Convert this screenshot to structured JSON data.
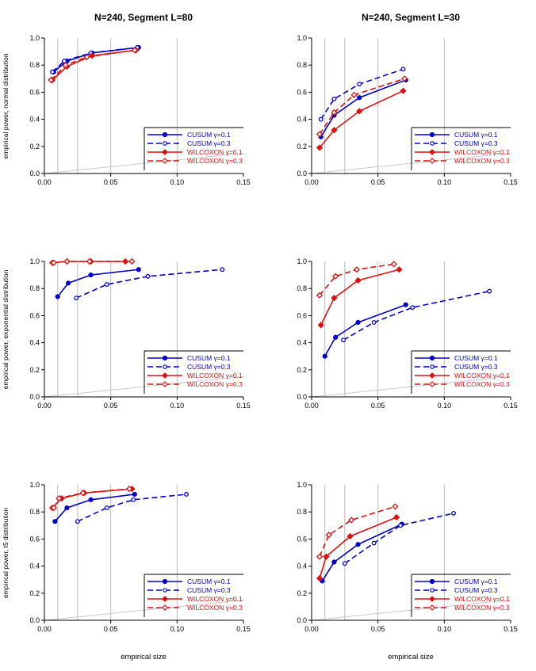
{
  "titles": {
    "col1": "N=240, Segment L=80",
    "col2": "N=240, Segment L=30"
  },
  "ylabels": {
    "row1": "empirical power, normal distribution",
    "row2": "empirical power, exponential distribution",
    "row3": "empirical power, t5 distribution"
  },
  "xlabel": "empirical size",
  "colors": {
    "cusum": "#0000cc",
    "wilcoxon": "#dd1111",
    "grid": "#bbbbbb",
    "diag": "#c8c8c8"
  },
  "chart_data": [
    {
      "type": "line",
      "title": "N=240, Segment L=80",
      "xlabel": "",
      "ylabel": "empirical power, normal distribution",
      "xlim": [
        0,
        0.15
      ],
      "ylim": [
        0,
        1.0
      ],
      "xticks": [
        "0.00",
        "0.05",
        "0.10",
        "0.15"
      ],
      "yticks": [
        "0.0",
        "0.2",
        "0.4",
        "0.6",
        "0.8",
        "1.0"
      ],
      "reference_vlines": [
        0.01,
        0.025,
        0.05,
        0.1
      ],
      "diagonal": true,
      "legend_position": "bottom-right",
      "series": [
        {
          "name": "CUSUM γ=0.1",
          "method": "cusum",
          "dashed": false,
          "x": [
            0.007,
            0.017,
            0.036,
            0.071
          ],
          "y": [
            0.75,
            0.83,
            0.89,
            0.93
          ]
        },
        {
          "name": "CUSUM γ=0.3",
          "method": "cusum",
          "dashed": true,
          "x": [
            0.006,
            0.015,
            0.035,
            0.07
          ],
          "y": [
            0.75,
            0.83,
            0.89,
            0.93
          ]
        },
        {
          "name": "WILCOXON γ=0.1",
          "method": "wilcoxon",
          "dashed": false,
          "x": [
            0.006,
            0.017,
            0.036,
            0.069
          ],
          "y": [
            0.69,
            0.79,
            0.87,
            0.91
          ]
        },
        {
          "name": "WILCOXON γ=0.3",
          "method": "wilcoxon",
          "dashed": true,
          "x": [
            0.005,
            0.016,
            0.032,
            0.068
          ],
          "y": [
            0.69,
            0.8,
            0.86,
            0.91
          ]
        }
      ]
    },
    {
      "type": "line",
      "title": "N=240, Segment L=30",
      "xlabel": "",
      "ylabel": "",
      "xlim": [
        0,
        0.15
      ],
      "ylim": [
        0,
        1.0
      ],
      "xticks": [
        "0.00",
        "0.05",
        "0.10",
        "0.15"
      ],
      "yticks": [
        "0.0",
        "0.2",
        "0.4",
        "0.6",
        "0.8",
        "1.0"
      ],
      "reference_vlines": [
        0.01,
        0.025,
        0.05,
        0.1
      ],
      "diagonal": true,
      "legend_position": "bottom-right",
      "series": [
        {
          "name": "CUSUM γ=0.1",
          "method": "cusum",
          "dashed": false,
          "x": [
            0.007,
            0.017,
            0.036,
            0.071
          ],
          "y": [
            0.27,
            0.43,
            0.56,
            0.69
          ]
        },
        {
          "name": "CUSUM γ=0.3",
          "method": "cusum",
          "dashed": true,
          "x": [
            0.007,
            0.017,
            0.036,
            0.069
          ],
          "y": [
            0.4,
            0.55,
            0.66,
            0.77
          ]
        },
        {
          "name": "WILCOXON γ=0.1",
          "method": "wilcoxon",
          "dashed": false,
          "x": [
            0.006,
            0.017,
            0.036,
            0.069
          ],
          "y": [
            0.19,
            0.32,
            0.46,
            0.61
          ]
        },
        {
          "name": "WILCOXON γ=0.3",
          "method": "wilcoxon",
          "dashed": true,
          "x": [
            0.006,
            0.017,
            0.032,
            0.07
          ],
          "y": [
            0.29,
            0.45,
            0.58,
            0.7
          ]
        }
      ]
    },
    {
      "type": "line",
      "title": "",
      "xlabel": "",
      "ylabel": "empirical power, exponential distribution",
      "xlim": [
        0,
        0.15
      ],
      "ylim": [
        0,
        1.0
      ],
      "xticks": [
        "0.00",
        "0.05",
        "0.10",
        "0.15"
      ],
      "yticks": [
        "0.0",
        "0.2",
        "0.4",
        "0.6",
        "0.8",
        "1.0"
      ],
      "reference_vlines": [
        0.01,
        0.025,
        0.05,
        0.1
      ],
      "diagonal": true,
      "legend_position": "bottom-right",
      "series": [
        {
          "name": "CUSUM γ=0.1",
          "method": "cusum",
          "dashed": false,
          "x": [
            0.01,
            0.018,
            0.035,
            0.071
          ],
          "y": [
            0.74,
            0.84,
            0.9,
            0.94
          ]
        },
        {
          "name": "CUSUM γ=0.3",
          "method": "cusum",
          "dashed": true,
          "x": [
            0.024,
            0.047,
            0.078,
            0.134
          ],
          "y": [
            0.73,
            0.83,
            0.89,
            0.94
          ]
        },
        {
          "name": "WILCOXON γ=0.1",
          "method": "wilcoxon",
          "dashed": false,
          "x": [
            0.006,
            0.017,
            0.035,
            0.061
          ],
          "y": [
            0.99,
            1.0,
            1.0,
            1.0
          ]
        },
        {
          "name": "WILCOXON γ=0.3",
          "method": "wilcoxon",
          "dashed": true,
          "x": [
            0.007,
            0.017,
            0.034,
            0.066
          ],
          "y": [
            0.99,
            1.0,
            1.0,
            1.0
          ]
        }
      ]
    },
    {
      "type": "line",
      "title": "",
      "xlabel": "",
      "ylabel": "",
      "xlim": [
        0,
        0.15
      ],
      "ylim": [
        0,
        1.0
      ],
      "xticks": [
        "0.00",
        "0.05",
        "0.10",
        "0.15"
      ],
      "yticks": [
        "0.0",
        "0.2",
        "0.4",
        "0.6",
        "0.8",
        "1.0"
      ],
      "reference_vlines": [
        0.01,
        0.025,
        0.05,
        0.1
      ],
      "diagonal": true,
      "legend_position": "bottom-right",
      "series": [
        {
          "name": "CUSUM γ=0.1",
          "method": "cusum",
          "dashed": false,
          "x": [
            0.01,
            0.018,
            0.035,
            0.071
          ],
          "y": [
            0.3,
            0.44,
            0.55,
            0.68
          ]
        },
        {
          "name": "CUSUM γ=0.3",
          "method": "cusum",
          "dashed": true,
          "x": [
            0.024,
            0.047,
            0.076,
            0.134
          ],
          "y": [
            0.42,
            0.55,
            0.66,
            0.78
          ]
        },
        {
          "name": "WILCOXON γ=0.1",
          "method": "wilcoxon",
          "dashed": false,
          "x": [
            0.007,
            0.017,
            0.035,
            0.066
          ],
          "y": [
            0.53,
            0.73,
            0.86,
            0.94
          ]
        },
        {
          "name": "WILCOXON γ=0.3",
          "method": "wilcoxon",
          "dashed": true,
          "x": [
            0.006,
            0.018,
            0.034,
            0.062
          ],
          "y": [
            0.75,
            0.89,
            0.94,
            0.98
          ]
        }
      ]
    },
    {
      "type": "line",
      "title": "",
      "xlabel": "",
      "ylabel": "empirical power, t5 distribution",
      "xlim": [
        0,
        0.15
      ],
      "ylim": [
        0,
        1.0
      ],
      "xticks": [
        "0.00",
        "0.05",
        "0.10",
        "0.15"
      ],
      "yticks": [
        "0.0",
        "0.2",
        "0.4",
        "0.6",
        "0.8",
        "1.0"
      ],
      "reference_vlines": [
        0.01,
        0.025,
        0.05,
        0.1
      ],
      "diagonal": true,
      "legend_position": "bottom-right",
      "series": [
        {
          "name": "CUSUM γ=0.1",
          "method": "cusum",
          "dashed": false,
          "x": [
            0.008,
            0.017,
            0.035,
            0.068
          ],
          "y": [
            0.73,
            0.83,
            0.89,
            0.93
          ]
        },
        {
          "name": "CUSUM γ=0.3",
          "method": "cusum",
          "dashed": true,
          "x": [
            0.025,
            0.047,
            0.067,
            0.107
          ],
          "y": [
            0.73,
            0.83,
            0.89,
            0.93
          ]
        },
        {
          "name": "WILCOXON γ=0.1",
          "method": "wilcoxon",
          "dashed": false,
          "x": [
            0.006,
            0.013,
            0.03,
            0.066
          ],
          "y": [
            0.83,
            0.9,
            0.94,
            0.97
          ]
        },
        {
          "name": "WILCOXON γ=0.3",
          "method": "wilcoxon",
          "dashed": true,
          "x": [
            0.007,
            0.011,
            0.029,
            0.064
          ],
          "y": [
            0.83,
            0.9,
            0.94,
            0.97
          ]
        }
      ]
    },
    {
      "type": "line",
      "title": "",
      "xlabel": "",
      "ylabel": "",
      "xlim": [
        0,
        0.15
      ],
      "ylim": [
        0,
        1.0
      ],
      "xticks": [
        "0.00",
        "0.05",
        "0.10",
        "0.15"
      ],
      "yticks": [
        "0.0",
        "0.2",
        "0.4",
        "0.6",
        "0.8",
        "1.0"
      ],
      "reference_vlines": [
        0.01,
        0.025,
        0.05,
        0.1
      ],
      "diagonal": true,
      "legend_position": "bottom-right",
      "series": [
        {
          "name": "CUSUM γ=0.1",
          "method": "cusum",
          "dashed": false,
          "x": [
            0.008,
            0.017,
            0.035,
            0.068
          ],
          "y": [
            0.29,
            0.43,
            0.56,
            0.71
          ]
        },
        {
          "name": "CUSUM γ=0.3",
          "method": "cusum",
          "dashed": true,
          "x": [
            0.025,
            0.047,
            0.067,
            0.107
          ],
          "y": [
            0.42,
            0.57,
            0.7,
            0.79
          ]
        },
        {
          "name": "WILCOXON γ=0.1",
          "method": "wilcoxon",
          "dashed": false,
          "x": [
            0.006,
            0.011,
            0.029,
            0.064
          ],
          "y": [
            0.31,
            0.47,
            0.62,
            0.76
          ]
        },
        {
          "name": "WILCOXON γ=0.3",
          "method": "wilcoxon",
          "dashed": true,
          "x": [
            0.006,
            0.013,
            0.03,
            0.063
          ],
          "y": [
            0.47,
            0.63,
            0.74,
            0.84
          ]
        }
      ]
    }
  ]
}
